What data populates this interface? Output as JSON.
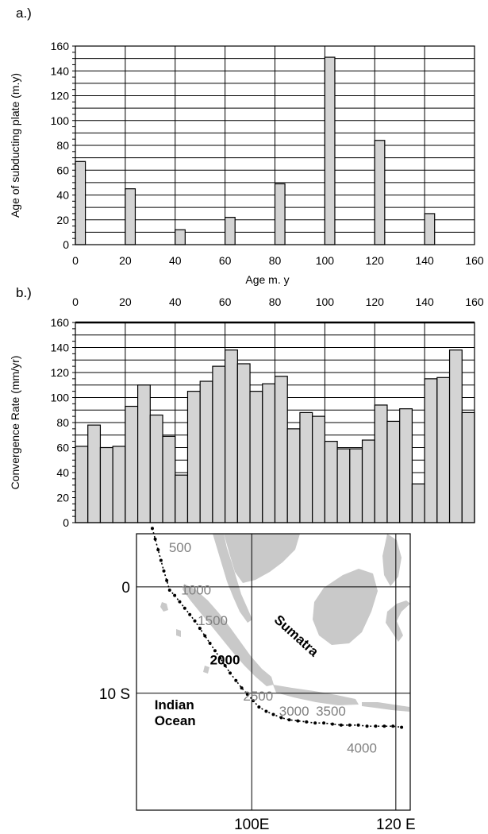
{
  "chart_data": [
    {
      "panel": "a.)",
      "type": "bar",
      "ylabel": "Age of subducting plate (m.y)",
      "xlabel": "Age m. y",
      "xlim": [
        0,
        160
      ],
      "ylim": [
        0,
        160
      ],
      "xticks": [
        "0",
        "20",
        "40",
        "60",
        "80",
        "100",
        "120",
        "140",
        "160"
      ],
      "yticks": [
        "0",
        "20",
        "40",
        "60",
        "80",
        "100",
        "120",
        "140",
        "160"
      ],
      "x": [
        2,
        22,
        42,
        62,
        82,
        102,
        122,
        142
      ],
      "values": [
        67,
        45,
        12,
        22,
        49,
        151,
        84,
        25
      ]
    },
    {
      "panel": "b.)",
      "type": "bar",
      "ylabel": "Convergence Rate (mm/yr)",
      "xlim": [
        0,
        160
      ],
      "ylim": [
        0,
        160
      ],
      "xticks": [
        "0",
        "20",
        "40",
        "60",
        "80",
        "100",
        "120",
        "140",
        "160"
      ],
      "yticks": [
        "0",
        "20",
        "40",
        "60",
        "80",
        "100",
        "120",
        "140",
        "160"
      ],
      "bin_width": 5,
      "values": [
        61,
        78,
        60,
        61,
        93,
        110,
        86,
        69,
        38,
        105,
        113,
        125,
        138,
        127,
        105,
        111,
        117,
        75,
        88,
        85,
        65,
        59,
        59,
        66,
        94,
        81,
        91,
        31,
        115,
        116,
        138,
        88
      ]
    },
    {
      "panel": "map",
      "type": "scatter",
      "xlim": [
        84,
        122
      ],
      "ylim": [
        -21,
        5
      ],
      "yticks": [
        {
          "value": 0,
          "label": "0"
        },
        {
          "value": -10,
          "label": "10 S"
        }
      ],
      "xticks": [
        {
          "value": 100,
          "label": "100E"
        },
        {
          "value": 120,
          "label": "120 E"
        }
      ],
      "region_labels": [
        {
          "text": "Sumatra",
          "lon": 103,
          "lat": -3.2,
          "rotate": 42,
          "bold": true
        },
        {
          "text": "Indian\nOcean",
          "lon": 86.5,
          "lat": -11.5,
          "bold": true
        }
      ],
      "track": {
        "lon": [
          86.2,
          86.6,
          87.0,
          87.4,
          87.8,
          88.2,
          88.6,
          89.3,
          90.0,
          90.7,
          91.4,
          92.1,
          92.8,
          93.5,
          94.2,
          94.9,
          95.6,
          96.3,
          97.0,
          97.8,
          98.6,
          99.4,
          100.2,
          101.0,
          102.0,
          103.0,
          104.1,
          105.2,
          106.4,
          107.6,
          108.8,
          110.0,
          111.2,
          112.4,
          113.6,
          114.8,
          116.0,
          117.2,
          118.4,
          119.6,
          120.8
        ],
        "lat": [
          5.5,
          4.5,
          3.5,
          2.5,
          1.5,
          0.6,
          -0.3,
          -0.8,
          -1.4,
          -2.0,
          -2.6,
          -3.2,
          -3.9,
          -4.6,
          -5.3,
          -6.0,
          -6.7,
          -7.4,
          -8.1,
          -8.8,
          -9.5,
          -10.1,
          -10.7,
          -11.3,
          -11.7,
          -12.0,
          -12.3,
          -12.5,
          -12.6,
          -12.7,
          -12.8,
          -12.8,
          -12.9,
          -13.0,
          -13.0,
          -13.0,
          -13.1,
          -13.1,
          -13.1,
          -13.1,
          -13.2
        ]
      },
      "track_labels": [
        {
          "text": "500",
          "lon": 88.5,
          "lat": 3.3,
          "bold": false
        },
        {
          "text": "1000",
          "lon": 90.2,
          "lat": -0.7,
          "bold": false
        },
        {
          "text": "1500",
          "lon": 92.5,
          "lat": -3.6,
          "bold": false
        },
        {
          "text": "2000",
          "lon": 94.2,
          "lat": -7.3,
          "bold": true
        },
        {
          "text": "2500",
          "lon": 98.8,
          "lat": -10.7,
          "bold": false
        },
        {
          "text": "3000",
          "lon": 103.8,
          "lat": -12.1,
          "bold": false
        },
        {
          "text": "3500",
          "lon": 108.9,
          "lat": -12.1,
          "bold": false
        },
        {
          "text": "4000",
          "lon": 113.2,
          "lat": -15.6,
          "bold": false
        }
      ]
    }
  ]
}
